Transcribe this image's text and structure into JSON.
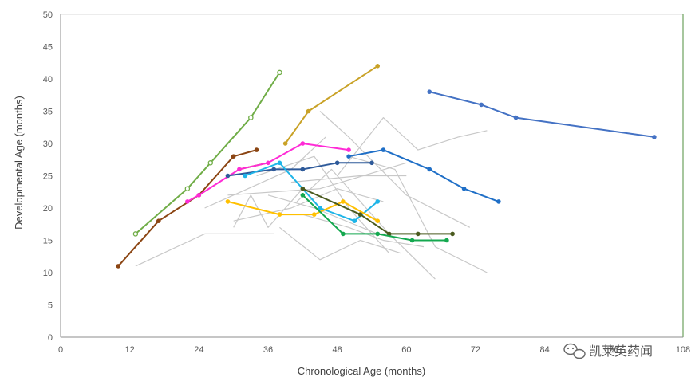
{
  "chart_data": {
    "type": "line",
    "title": "",
    "xlabel": "Chronological Age (months)",
    "ylabel": "Developmental Age (months)",
    "xlim": [
      0,
      108
    ],
    "ylim": [
      0,
      50
    ],
    "xticks": [
      0,
      12,
      24,
      36,
      48,
      60,
      72,
      84,
      96,
      108
    ],
    "yticks": [
      0,
      5,
      10,
      15,
      20,
      25,
      30,
      35,
      40,
      45,
      50
    ],
    "grid": false,
    "legend": "none",
    "series": [
      {
        "name": "bg-1",
        "color": "#c8c8c8",
        "marker": "none",
        "x": [
          13,
          25,
          37
        ],
        "y": [
          11,
          16,
          16
        ]
      },
      {
        "name": "bg-2",
        "color": "#c8c8c8",
        "marker": "none",
        "x": [
          25,
          40,
          46
        ],
        "y": [
          20,
          26,
          31
        ]
      },
      {
        "name": "bg-3",
        "color": "#c8c8c8",
        "marker": "none",
        "x": [
          30,
          33,
          36,
          42
        ],
        "y": [
          17,
          22,
          17,
          23
        ]
      },
      {
        "name": "bg-4",
        "color": "#c8c8c8",
        "marker": "none",
        "x": [
          29,
          45,
          60
        ],
        "y": [
          22,
          23,
          27
        ]
      },
      {
        "name": "bg-5",
        "color": "#c8c8c8",
        "marker": "none",
        "x": [
          34,
          44,
          50,
          57
        ],
        "y": [
          25,
          28,
          20,
          13
        ]
      },
      {
        "name": "bg-6",
        "color": "#c8c8c8",
        "marker": "none",
        "x": [
          38,
          45,
          52,
          59
        ],
        "y": [
          17,
          12,
          15,
          13
        ]
      },
      {
        "name": "bg-7",
        "color": "#c8c8c8",
        "marker": "none",
        "x": [
          41,
          47,
          57,
          65
        ],
        "y": [
          21,
          26,
          16,
          9
        ]
      },
      {
        "name": "bg-8",
        "color": "#c8c8c8",
        "marker": "none",
        "x": [
          45,
          50,
          60,
          71
        ],
        "y": [
          35,
          31,
          22,
          17
        ]
      },
      {
        "name": "bg-9",
        "color": "#c8c8c8",
        "marker": "none",
        "x": [
          48,
          56,
          62,
          69,
          74
        ],
        "y": [
          25,
          34,
          29,
          31,
          32
        ]
      },
      {
        "name": "bg-10",
        "color": "#c8c8c8",
        "marker": "none",
        "x": [
          50,
          58,
          65,
          74
        ],
        "y": [
          28,
          26,
          14,
          10
        ]
      },
      {
        "name": "bg-11",
        "color": "#c8c8c8",
        "marker": "none",
        "x": [
          40,
          52,
          60
        ],
        "y": [
          24,
          25,
          25
        ]
      },
      {
        "name": "bg-12",
        "color": "#c8c8c8",
        "marker": "none",
        "x": [
          42,
          50,
          56,
          63
        ],
        "y": [
          19,
          17,
          15,
          14
        ]
      },
      {
        "name": "bg-13",
        "color": "#c8c8c8",
        "marker": "none",
        "x": [
          30,
          40,
          48,
          56
        ],
        "y": [
          18,
          20,
          23,
          21
        ]
      },
      {
        "name": "bg-14",
        "color": "#c8c8c8",
        "marker": "none",
        "x": [
          36,
          44,
          55,
          60
        ],
        "y": [
          22,
          20,
          16,
          16
        ]
      },
      {
        "name": "light-green",
        "color": "#70ad47",
        "marker": "open",
        "x": [
          13,
          22,
          26,
          33,
          38
        ],
        "y": [
          16,
          23,
          27,
          34,
          41
        ]
      },
      {
        "name": "brown",
        "color": "#8b4513",
        "marker": "filled",
        "x": [
          10,
          17,
          24,
          30,
          34
        ],
        "y": [
          11,
          18,
          22,
          28,
          29
        ]
      },
      {
        "name": "olive",
        "color": "#a9821f",
        "marker": "none",
        "x": [
          31,
          36
        ],
        "y": [
          26,
          27
        ]
      },
      {
        "name": "gold",
        "color": "#c9a227",
        "marker": "filled",
        "x": [
          39,
          43,
          55
        ],
        "y": [
          30,
          35,
          42
        ]
      },
      {
        "name": "magenta",
        "color": "#ff2bd6",
        "marker": "filled",
        "x": [
          22,
          24,
          31,
          36,
          42,
          50
        ],
        "y": [
          21,
          22,
          26,
          27,
          30,
          29
        ]
      },
      {
        "name": "navy",
        "color": "#2e5a9a",
        "marker": "filled",
        "x": [
          29,
          37,
          42,
          48,
          54
        ],
        "y": [
          25,
          26,
          26,
          27,
          27
        ]
      },
      {
        "name": "cyan",
        "color": "#1fb5e8",
        "marker": "filled",
        "x": [
          32,
          38,
          45,
          51,
          55
        ],
        "y": [
          25,
          27,
          20,
          18,
          21
        ]
      },
      {
        "name": "blue-mid",
        "color": "#1f6fc7",
        "marker": "filled",
        "x": [
          50,
          56,
          64,
          70,
          76
        ],
        "y": [
          28,
          29,
          26,
          23,
          21
        ]
      },
      {
        "name": "yellow",
        "color": "#ffc000",
        "marker": "filled",
        "x": [
          29,
          38,
          44,
          49,
          55
        ],
        "y": [
          21,
          19,
          19,
          21,
          18
        ]
      },
      {
        "name": "dark-olive",
        "color": "#4a5a1e",
        "marker": "filled",
        "x": [
          42,
          52,
          57,
          62,
          68
        ],
        "y": [
          23,
          19,
          16,
          16,
          16
        ]
      },
      {
        "name": "green",
        "color": "#14a84f",
        "marker": "filled",
        "x": [
          42,
          49,
          55,
          61,
          67
        ],
        "y": [
          22,
          16,
          16,
          15,
          15
        ]
      },
      {
        "name": "steel-blue",
        "color": "#4472c4",
        "marker": "filled",
        "x": [
          64,
          73,
          79,
          103
        ],
        "y": [
          38,
          36,
          34,
          31
        ]
      }
    ]
  },
  "watermark": {
    "text": "凯莱英药闻"
  }
}
